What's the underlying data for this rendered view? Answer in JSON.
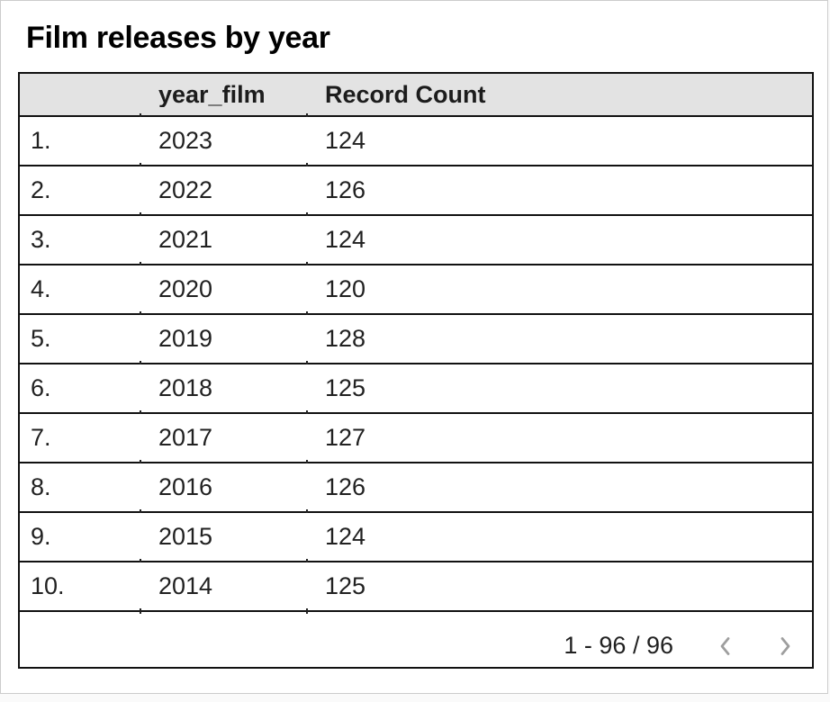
{
  "chart_data": {
    "type": "table",
    "title": "Film releases by year",
    "columns": [
      "",
      "year_film",
      "Record Count"
    ],
    "rows": [
      {
        "num": "1.",
        "year_film": "2023",
        "record_count": "124"
      },
      {
        "num": "2.",
        "year_film": "2022",
        "record_count": "126"
      },
      {
        "num": "3.",
        "year_film": "2021",
        "record_count": "124"
      },
      {
        "num": "4.",
        "year_film": "2020",
        "record_count": "120"
      },
      {
        "num": "5.",
        "year_film": "2019",
        "record_count": "128"
      },
      {
        "num": "6.",
        "year_film": "2018",
        "record_count": "125"
      },
      {
        "num": "7.",
        "year_film": "2017",
        "record_count": "127"
      },
      {
        "num": "8.",
        "year_film": "2016",
        "record_count": "126"
      },
      {
        "num": "9.",
        "year_film": "2015",
        "record_count": "124"
      },
      {
        "num": "10.",
        "year_film": "2014",
        "record_count": "125"
      }
    ],
    "layout": {
      "header_row": true,
      "row_numbers": true,
      "grid": "horizontal-dividers"
    }
  },
  "pagination": {
    "range_label": "1 - 96 / 96",
    "prev_icon": "chevron-left",
    "next_icon": "chevron-right"
  },
  "colors": {
    "header_bg": "#e3e3e3",
    "table_border": "#111111",
    "body_text": "#212121",
    "title_text": "#000000",
    "chevron": "#9e9e9e",
    "card_border": "#cccccc",
    "card_bg": "#ffffff"
  }
}
